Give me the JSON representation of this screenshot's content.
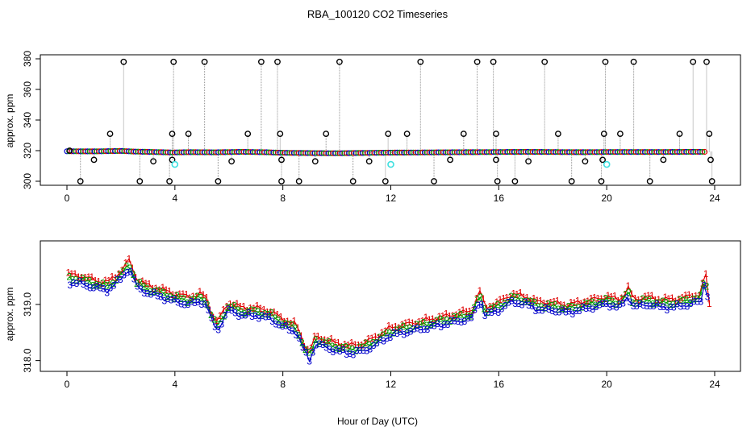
{
  "title": "RBA_100120  CO2 Timeseries",
  "xlabel": "Hour of Day (UTC)",
  "colors": {
    "s1": "#e00000",
    "s2": "#00a000",
    "s3": "#0000cc",
    "cyan": "#40e0e0",
    "outlier": "#000000",
    "trace": "#909090"
  },
  "chart_data": [
    {
      "type": "scatter",
      "panel": "top",
      "ylabel": "approx. ppm",
      "xlim": [
        0,
        24
      ],
      "ylim": [
        300,
        380
      ],
      "x_ticks": [
        "0",
        "4",
        "8",
        "12",
        "16",
        "20",
        "24"
      ],
      "y_ticks": [
        "300",
        "320",
        "340",
        "360",
        "380"
      ],
      "baseline": [
        [
          0.0,
          319.6
        ],
        [
          1.0,
          319.5
        ],
        [
          2.0,
          319.8
        ],
        [
          2.5,
          319.4
        ],
        [
          3.0,
          319.2
        ],
        [
          3.9,
          318.8
        ],
        [
          4.5,
          319.0
        ],
        [
          5.5,
          318.9
        ],
        [
          6.5,
          319.2
        ],
        [
          7.5,
          318.9
        ],
        [
          8.0,
          318.6
        ],
        [
          9.0,
          318.4
        ],
        [
          10.0,
          318.3
        ],
        [
          11.0,
          318.5
        ],
        [
          12.0,
          318.7
        ],
        [
          13.0,
          318.8
        ],
        [
          14.0,
          318.9
        ],
        [
          15.0,
          319.0
        ],
        [
          16.0,
          319.1
        ],
        [
          17.0,
          319.2
        ],
        [
          18.0,
          319.1
        ],
        [
          19.0,
          319.0
        ],
        [
          20.0,
          319.1
        ],
        [
          21.0,
          319.1
        ],
        [
          22.0,
          319.1
        ],
        [
          23.0,
          319.2
        ],
        [
          23.7,
          319.2
        ]
      ],
      "outliers": [
        [
          0.1,
          320
        ],
        [
          0.5,
          300
        ],
        [
          1.0,
          314
        ],
        [
          1.6,
          331
        ],
        [
          2.1,
          378
        ],
        [
          2.7,
          300
        ],
        [
          3.2,
          313
        ],
        [
          3.8,
          300
        ],
        [
          3.9,
          314
        ],
        [
          3.9,
          331
        ],
        [
          3.95,
          378
        ],
        [
          4.5,
          331
        ],
        [
          5.1,
          378
        ],
        [
          5.6,
          300
        ],
        [
          6.1,
          313
        ],
        [
          6.7,
          331
        ],
        [
          7.2,
          378
        ],
        [
          7.8,
          378
        ],
        [
          7.9,
          331
        ],
        [
          7.95,
          314
        ],
        [
          7.95,
          300
        ],
        [
          8.6,
          300
        ],
        [
          9.2,
          313
        ],
        [
          9.6,
          331
        ],
        [
          10.1,
          378
        ],
        [
          10.6,
          300
        ],
        [
          11.2,
          313
        ],
        [
          11.8,
          300
        ],
        [
          11.9,
          331
        ],
        [
          12.6,
          331
        ],
        [
          13.1,
          378
        ],
        [
          13.6,
          300
        ],
        [
          14.2,
          314
        ],
        [
          14.7,
          331
        ],
        [
          15.2,
          378
        ],
        [
          15.8,
          378
        ],
        [
          15.9,
          331
        ],
        [
          15.9,
          314
        ],
        [
          15.95,
          300
        ],
        [
          16.6,
          300
        ],
        [
          17.1,
          313
        ],
        [
          17.7,
          378
        ],
        [
          18.2,
          331
        ],
        [
          18.7,
          300
        ],
        [
          19.2,
          313
        ],
        [
          19.8,
          300
        ],
        [
          19.85,
          314
        ],
        [
          19.9,
          331
        ],
        [
          19.95,
          378
        ],
        [
          20.5,
          331
        ],
        [
          21.0,
          378
        ],
        [
          21.6,
          300
        ],
        [
          22.1,
          314
        ],
        [
          22.7,
          331
        ],
        [
          23.2,
          378
        ],
        [
          23.7,
          378
        ],
        [
          23.8,
          331
        ],
        [
          23.85,
          314
        ],
        [
          23.9,
          300
        ]
      ],
      "cyan_points": [
        [
          4.0,
          311
        ],
        [
          12.0,
          311
        ],
        [
          20.0,
          311
        ]
      ]
    },
    {
      "type": "line",
      "panel": "bottom",
      "ylabel": "approx. ppm",
      "xlim": [
        0,
        24
      ],
      "ylim": [
        317.88,
        320.06
      ],
      "x_ticks": [
        "0",
        "4",
        "8",
        "12",
        "16",
        "20",
        "24"
      ],
      "y_ticks": [
        "318.0",
        "319.0"
      ],
      "series": [
        {
          "name": "1",
          "offset": 0.09
        },
        {
          "name": "2",
          "offset": 0.02
        },
        {
          "name": "3",
          "offset": -0.05
        }
      ],
      "profile": [
        [
          0.0,
          319.45
        ],
        [
          0.5,
          319.42
        ],
        [
          1.0,
          319.35
        ],
        [
          1.5,
          319.3
        ],
        [
          2.0,
          319.5
        ],
        [
          2.3,
          319.7
        ],
        [
          2.6,
          319.35
        ],
        [
          3.0,
          319.25
        ],
        [
          3.5,
          319.18
        ],
        [
          4.0,
          319.1
        ],
        [
          4.5,
          319.05
        ],
        [
          5.0,
          319.1
        ],
        [
          5.2,
          319.0
        ],
        [
          5.4,
          318.7
        ],
        [
          5.6,
          318.6
        ],
        [
          5.8,
          318.8
        ],
        [
          6.0,
          318.95
        ],
        [
          6.5,
          318.85
        ],
        [
          7.0,
          318.85
        ],
        [
          7.5,
          318.8
        ],
        [
          8.0,
          318.65
        ],
        [
          8.5,
          318.55
        ],
        [
          8.8,
          318.2
        ],
        [
          9.0,
          318.05
        ],
        [
          9.2,
          318.35
        ],
        [
          9.5,
          318.3
        ],
        [
          10.0,
          318.22
        ],
        [
          10.5,
          318.18
        ],
        [
          11.0,
          318.22
        ],
        [
          11.5,
          318.35
        ],
        [
          12.0,
          318.5
        ],
        [
          12.5,
          318.55
        ],
        [
          13.0,
          318.6
        ],
        [
          13.5,
          318.65
        ],
        [
          14.0,
          318.7
        ],
        [
          14.5,
          318.75
        ],
        [
          15.0,
          318.8
        ],
        [
          15.3,
          319.15
        ],
        [
          15.5,
          318.85
        ],
        [
          16.0,
          318.95
        ],
        [
          16.5,
          319.1
        ],
        [
          17.0,
          319.05
        ],
        [
          17.5,
          318.95
        ],
        [
          18.0,
          318.95
        ],
        [
          18.5,
          318.9
        ],
        [
          19.0,
          318.95
        ],
        [
          19.5,
          319.0
        ],
        [
          20.0,
          319.05
        ],
        [
          20.5,
          319.0
        ],
        [
          20.8,
          319.2
        ],
        [
          21.0,
          319.0
        ],
        [
          21.5,
          319.05
        ],
        [
          22.0,
          319.0
        ],
        [
          22.5,
          319.0
        ],
        [
          23.0,
          319.05
        ],
        [
          23.5,
          319.1
        ],
        [
          23.65,
          319.55
        ],
        [
          23.8,
          318.9
        ]
      ]
    }
  ]
}
